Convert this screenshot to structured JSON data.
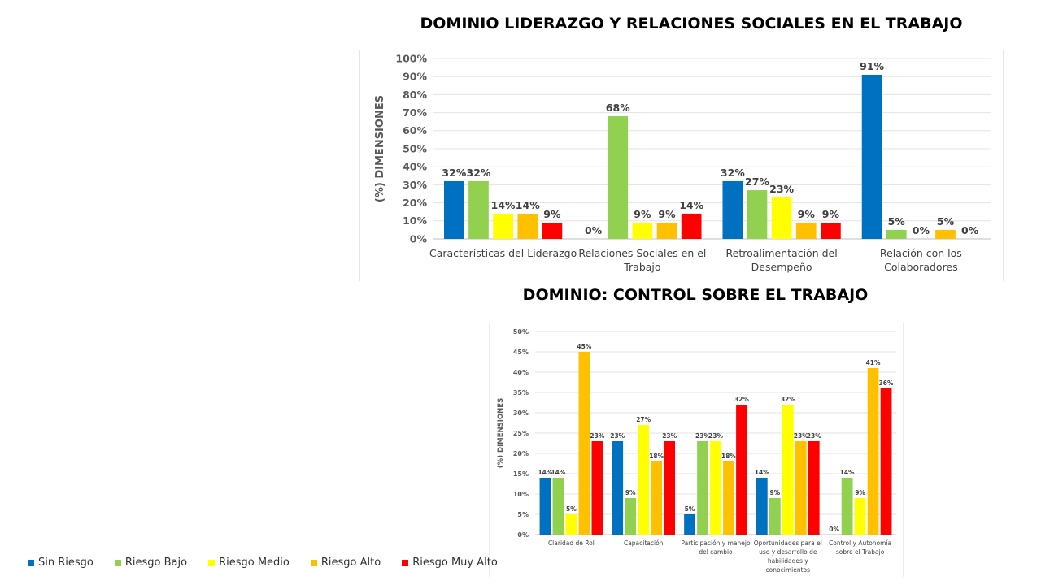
{
  "chart_data": [
    {
      "type": "bar",
      "title": "DOMINIO LIDERAZGO Y RELACIONES SOCIALES EN EL TRABAJO",
      "ylabel": "(%) DIMENSIONES",
      "ylim": [
        0,
        100
      ],
      "yticks": [
        "0%",
        "10%",
        "20%",
        "30%",
        "40%",
        "50%",
        "60%",
        "70%",
        "80%",
        "90%",
        "100%"
      ],
      "categories": [
        [
          "Características del Liderazgo"
        ],
        [
          "Relaciones Sociales en el",
          "Trabajo"
        ],
        [
          "Retroalimentación del",
          "Desempeño"
        ],
        [
          "Relación con los",
          "Colaboradores"
        ]
      ],
      "series": [
        {
          "name": "Sin Riesgo",
          "color": "#0070c0",
          "values": [
            32,
            0,
            32,
            91
          ]
        },
        {
          "name": "Riesgo Bajo",
          "color": "#92d050",
          "values": [
            32,
            68,
            27,
            5
          ]
        },
        {
          "name": "Riesgo Medio",
          "color": "#ffff00",
          "values": [
            14,
            9,
            23,
            0
          ]
        },
        {
          "name": "Riesgo Alto",
          "color": "#ffc000",
          "values": [
            14,
            9,
            9,
            5
          ]
        },
        {
          "name": "Riesgo Muy Alto",
          "color": "#ff0000",
          "values": [
            9,
            14,
            9,
            0
          ]
        }
      ],
      "legend": "bottom-left",
      "grid": true
    },
    {
      "type": "bar",
      "title": "DOMINIO: CONTROL SOBRE EL TRABAJO",
      "ylabel": "(%) DIMENSIONES",
      "ylim": [
        0,
        50
      ],
      "yticks": [
        "0%",
        "5%",
        "10%",
        "15%",
        "20%",
        "25%",
        "30%",
        "35%",
        "40%",
        "45%",
        "50%"
      ],
      "categories": [
        [
          "Claridad de Rol"
        ],
        [
          "Capacitación"
        ],
        [
          "Participación y manejo",
          "del cambio"
        ],
        [
          "Oportunidades para el",
          "uso y desarrollo de",
          "habilidades y",
          "conocimientos"
        ],
        [
          "Control y Autonomía",
          "sobre el Trabajo"
        ]
      ],
      "series": [
        {
          "name": "Sin Riesgo",
          "color": "#0070c0",
          "values": [
            14,
            23,
            5,
            14,
            0
          ]
        },
        {
          "name": "Riesgo Bajo",
          "color": "#92d050",
          "values": [
            14,
            9,
            23,
            9,
            14
          ]
        },
        {
          "name": "Riesgo Medio",
          "color": "#ffff00",
          "values": [
            5,
            27,
            23,
            32,
            9
          ]
        },
        {
          "name": "Riesgo Alto",
          "color": "#ffc000",
          "values": [
            45,
            18,
            18,
            23,
            41
          ]
        },
        {
          "name": "Riesgo Muy Alto",
          "color": "#ff0000",
          "values": [
            23,
            23,
            32,
            23,
            36
          ]
        }
      ],
      "legend": "bottom-left",
      "grid": true
    }
  ],
  "legend": [
    {
      "label": "Sin Riesgo",
      "color": "#0070c0"
    },
    {
      "label": "Riesgo Bajo",
      "color": "#92d050"
    },
    {
      "label": "Riesgo Medio",
      "color": "#ffff00"
    },
    {
      "label": "Riesgo Alto",
      "color": "#ffc000"
    },
    {
      "label": "Riesgo Muy Alto",
      "color": "#ff0000"
    }
  ]
}
